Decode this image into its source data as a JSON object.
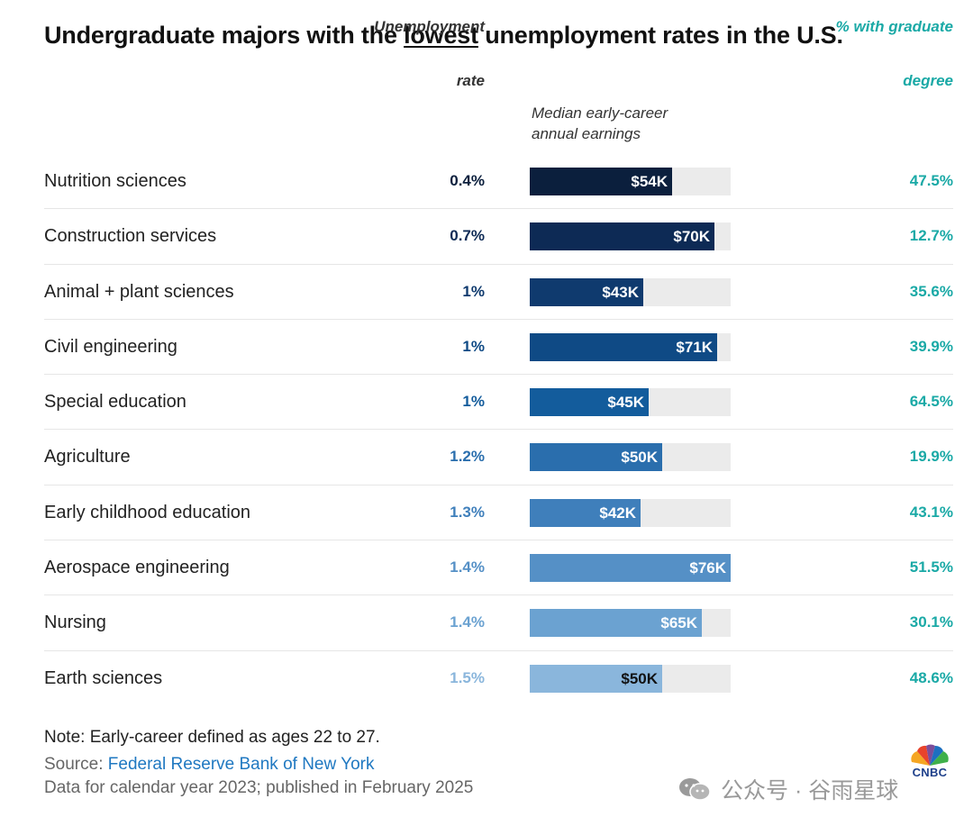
{
  "header": {
    "title_before": "Undergraduate majors with the ",
    "title_emphasis": "lowest",
    "title_after": " unemployment rates in the U.S."
  },
  "columns": {
    "rate_line1": "Unemployment",
    "rate_line2": "rate",
    "earnings_line1": "Median early-career",
    "earnings_line2": "annual earnings",
    "grad_line1": "% with graduate",
    "grad_line2": "degree"
  },
  "chart_data": {
    "type": "table",
    "earnings_max": 76,
    "rows": [
      {
        "major": "Nutrition sciences",
        "rate": "0.4%",
        "earnings": 54,
        "earnings_label": "$54K",
        "grad": "47.5%",
        "bar_color": "#0b1f3d",
        "rate_color": "#0b1f3d",
        "label_color": "#ffffff"
      },
      {
        "major": "Construction services",
        "rate": "0.7%",
        "earnings": 70,
        "earnings_label": "$70K",
        "grad": "12.7%",
        "bar_color": "#0d2a55",
        "rate_color": "#0d2a55",
        "label_color": "#ffffff"
      },
      {
        "major": "Animal + plant sciences",
        "rate": "1%",
        "earnings": 43,
        "earnings_label": "$43K",
        "grad": "35.6%",
        "bar_color": "#0f3a6e",
        "rate_color": "#0f3a6e",
        "label_color": "#ffffff"
      },
      {
        "major": "Civil engineering",
        "rate": "1%",
        "earnings": 71,
        "earnings_label": "$71K",
        "grad": "39.9%",
        "bar_color": "#0f4a85",
        "rate_color": "#0f4a85",
        "label_color": "#ffffff"
      },
      {
        "major": "Special education",
        "rate": "1%",
        "earnings": 45,
        "earnings_label": "$45K",
        "grad": "64.5%",
        "bar_color": "#135c9c",
        "rate_color": "#135c9c",
        "label_color": "#ffffff"
      },
      {
        "major": "Agriculture",
        "rate": "1.2%",
        "earnings": 50,
        "earnings_label": "$50K",
        "grad": "19.9%",
        "bar_color": "#2a6ead",
        "rate_color": "#2a6ead",
        "label_color": "#ffffff"
      },
      {
        "major": "Early childhood education",
        "rate": "1.3%",
        "earnings": 42,
        "earnings_label": "$42K",
        "grad": "43.1%",
        "bar_color": "#3f7fbb",
        "rate_color": "#3f7fbb",
        "label_color": "#ffffff"
      },
      {
        "major": "Aerospace engineering",
        "rate": "1.4%",
        "earnings": 76,
        "earnings_label": "$76K",
        "grad": "51.5%",
        "bar_color": "#5590c6",
        "rate_color": "#5590c6",
        "label_color": "#ffffff"
      },
      {
        "major": "Nursing",
        "rate": "1.4%",
        "earnings": 65,
        "earnings_label": "$65K",
        "grad": "30.1%",
        "bar_color": "#6ba2d1",
        "rate_color": "#6ba2d1",
        "label_color": "#ffffff"
      },
      {
        "major": "Earth sciences",
        "rate": "1.5%",
        "earnings": 50,
        "earnings_label": "$50K",
        "grad": "48.6%",
        "bar_color": "#8ab6dc",
        "rate_color": "#8ab6dc",
        "label_color": "#111111"
      }
    ]
  },
  "footer": {
    "note": "Note: Early-career defined as ages 22 to 27.",
    "source_prefix": "Source: ",
    "source_link": "Federal Reserve Bank of New York",
    "data_line": "Data for calendar year 2023; published in February 2025",
    "logo_text": "CNBC",
    "watermark": "公众号 · 谷雨星球"
  },
  "colors": {
    "grad_pct": "#1aa9a6",
    "source_link": "#1f78c1",
    "track": "#ebebeb"
  }
}
